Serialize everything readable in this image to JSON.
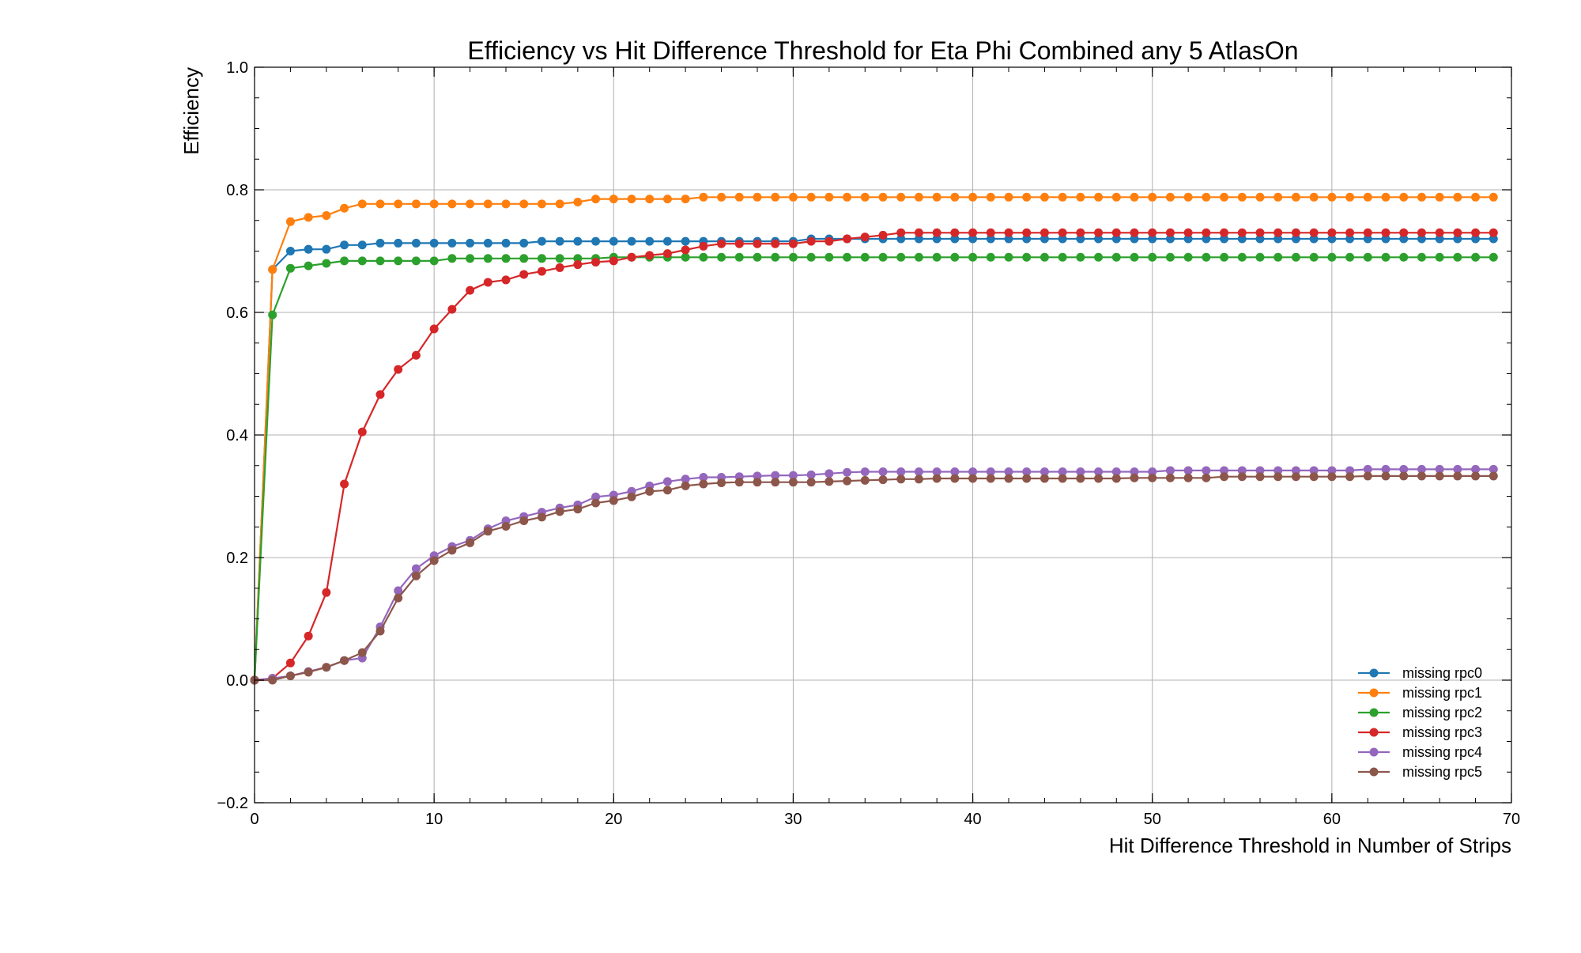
{
  "chart_data": {
    "type": "line",
    "title": "Efficiency vs Hit Difference Threshold for Eta Phi Combined any 5 AtlasOn",
    "xlabel": "Hit Difference Threshold in Number of Strips",
    "ylabel": "Efficiency",
    "xlim": [
      0,
      70
    ],
    "ylim": [
      -0.2,
      1.0
    ],
    "x_ticks": [
      "0",
      "10",
      "20",
      "30",
      "40",
      "50",
      "60",
      "70"
    ],
    "y_ticks": [
      "−0.2",
      "0.0",
      "0.2",
      "0.4",
      "0.6",
      "0.8",
      "1.0"
    ],
    "grid": true,
    "legend_position": "lower-right",
    "series": [
      {
        "name": "missing rpc0",
        "color": "#1f77b4",
        "values": [
          0,
          0.67,
          0.7,
          0.703,
          0.703,
          0.71,
          0.71,
          0.713,
          0.713,
          0.713,
          0.713,
          0.713,
          0.713,
          0.713,
          0.713,
          0.713,
          0.716,
          0.716,
          0.716,
          0.716,
          0.716,
          0.716,
          0.716,
          0.716,
          0.716,
          0.716,
          0.716,
          0.716,
          0.716,
          0.716,
          0.716,
          0.72,
          0.72,
          0.72,
          0.72,
          0.72,
          0.72,
          0.72,
          0.72,
          0.72,
          0.72,
          0.72,
          0.72,
          0.72,
          0.72,
          0.72,
          0.72,
          0.72,
          0.72,
          0.72,
          0.72,
          0.72,
          0.72,
          0.72,
          0.72,
          0.72,
          0.72,
          0.72,
          0.72,
          0.72,
          0.72,
          0.72,
          0.72,
          0.72,
          0.72,
          0.72,
          0.72,
          0.72,
          0.72,
          0.72
        ]
      },
      {
        "name": "missing rpc1",
        "color": "#ff7f0e",
        "values": [
          0,
          0.67,
          0.748,
          0.755,
          0.758,
          0.77,
          0.777,
          0.777,
          0.777,
          0.777,
          0.777,
          0.777,
          0.777,
          0.777,
          0.777,
          0.777,
          0.777,
          0.777,
          0.78,
          0.785,
          0.785,
          0.785,
          0.785,
          0.785,
          0.785,
          0.788,
          0.788,
          0.788,
          0.788,
          0.788,
          0.788,
          0.788,
          0.788,
          0.788,
          0.788,
          0.788,
          0.788,
          0.788,
          0.788,
          0.788,
          0.788,
          0.788,
          0.788,
          0.788,
          0.788,
          0.788,
          0.788,
          0.788,
          0.788,
          0.788,
          0.788,
          0.788,
          0.788,
          0.788,
          0.788,
          0.788,
          0.788,
          0.788,
          0.788,
          0.788,
          0.788,
          0.788,
          0.788,
          0.788,
          0.788,
          0.788,
          0.788,
          0.788,
          0.788,
          0.788
        ]
      },
      {
        "name": "missing rpc2",
        "color": "#2ca02c",
        "values": [
          0,
          0.596,
          0.672,
          0.676,
          0.68,
          0.684,
          0.684,
          0.684,
          0.684,
          0.684,
          0.684,
          0.688,
          0.688,
          0.688,
          0.688,
          0.688,
          0.688,
          0.688,
          0.688,
          0.688,
          0.69,
          0.69,
          0.69,
          0.69,
          0.69,
          0.69,
          0.69,
          0.69,
          0.69,
          0.69,
          0.69,
          0.69,
          0.69,
          0.69,
          0.69,
          0.69,
          0.69,
          0.69,
          0.69,
          0.69,
          0.69,
          0.69,
          0.69,
          0.69,
          0.69,
          0.69,
          0.69,
          0.69,
          0.69,
          0.69,
          0.69,
          0.69,
          0.69,
          0.69,
          0.69,
          0.69,
          0.69,
          0.69,
          0.69,
          0.69,
          0.69,
          0.69,
          0.69,
          0.69,
          0.69,
          0.69,
          0.69,
          0.69,
          0.69,
          0.69
        ]
      },
      {
        "name": "missing rpc3",
        "color": "#d62728",
        "values": [
          0,
          0.003,
          0.028,
          0.072,
          0.143,
          0.32,
          0.405,
          0.466,
          0.507,
          0.53,
          0.573,
          0.605,
          0.636,
          0.649,
          0.653,
          0.662,
          0.667,
          0.673,
          0.678,
          0.682,
          0.684,
          0.69,
          0.693,
          0.696,
          0.702,
          0.708,
          0.712,
          0.712,
          0.712,
          0.712,
          0.712,
          0.716,
          0.716,
          0.72,
          0.723,
          0.726,
          0.73,
          0.73,
          0.73,
          0.73,
          0.73,
          0.73,
          0.73,
          0.73,
          0.73,
          0.73,
          0.73,
          0.73,
          0.73,
          0.73,
          0.73,
          0.73,
          0.73,
          0.73,
          0.73,
          0.73,
          0.73,
          0.73,
          0.73,
          0.73,
          0.73,
          0.73,
          0.73,
          0.73,
          0.73,
          0.73,
          0.73,
          0.73,
          0.73,
          0.73
        ]
      },
      {
        "name": "missing rpc4",
        "color": "#9467bd",
        "values": [
          0,
          0.003,
          0.007,
          0.014,
          0.021,
          0.032,
          0.036,
          0.087,
          0.146,
          0.182,
          0.203,
          0.218,
          0.228,
          0.247,
          0.26,
          0.267,
          0.274,
          0.281,
          0.286,
          0.299,
          0.302,
          0.308,
          0.317,
          0.324,
          0.328,
          0.331,
          0.331,
          0.332,
          0.333,
          0.334,
          0.334,
          0.335,
          0.337,
          0.339,
          0.34,
          0.34,
          0.34,
          0.34,
          0.34,
          0.34,
          0.34,
          0.34,
          0.34,
          0.34,
          0.34,
          0.34,
          0.34,
          0.34,
          0.34,
          0.34,
          0.34,
          0.342,
          0.342,
          0.342,
          0.342,
          0.342,
          0.342,
          0.342,
          0.342,
          0.342,
          0.342,
          0.342,
          0.344,
          0.344,
          0.344,
          0.344,
          0.344,
          0.344,
          0.344,
          0.344
        ]
      },
      {
        "name": "missing rpc5",
        "color": "#8c564b",
        "values": [
          0,
          0.0,
          0.007,
          0.013,
          0.021,
          0.032,
          0.045,
          0.08,
          0.134,
          0.17,
          0.195,
          0.212,
          0.224,
          0.243,
          0.251,
          0.26,
          0.266,
          0.275,
          0.279,
          0.289,
          0.293,
          0.299,
          0.308,
          0.31,
          0.317,
          0.32,
          0.322,
          0.323,
          0.323,
          0.323,
          0.323,
          0.323,
          0.324,
          0.325,
          0.326,
          0.327,
          0.328,
          0.328,
          0.329,
          0.329,
          0.329,
          0.329,
          0.329,
          0.329,
          0.329,
          0.329,
          0.329,
          0.329,
          0.329,
          0.33,
          0.33,
          0.33,
          0.33,
          0.33,
          0.332,
          0.332,
          0.332,
          0.332,
          0.332,
          0.332,
          0.332,
          0.332,
          0.333,
          0.333,
          0.333,
          0.333,
          0.333,
          0.333,
          0.333,
          0.333
        ]
      }
    ]
  }
}
